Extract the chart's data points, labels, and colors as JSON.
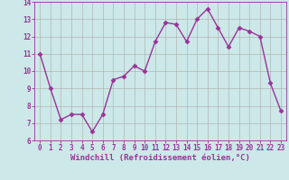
{
  "x": [
    0,
    1,
    2,
    3,
    4,
    5,
    6,
    7,
    8,
    9,
    10,
    11,
    12,
    13,
    14,
    15,
    16,
    17,
    18,
    19,
    20,
    21,
    22,
    23
  ],
  "y": [
    11.0,
    9.0,
    7.2,
    7.5,
    7.5,
    6.5,
    7.5,
    9.5,
    9.7,
    10.3,
    10.0,
    11.7,
    12.8,
    12.7,
    11.7,
    13.0,
    13.6,
    12.5,
    11.4,
    12.5,
    12.3,
    12.0,
    9.3,
    7.7
  ],
  "line_color": "#993399",
  "marker": "D",
  "markersize": 2.5,
  "linewidth": 1.0,
  "bg_color": "#cce8e8",
  "grid_color": "#aaaaaa",
  "xlabel": "Windchill (Refroidissement éolien,°C)",
  "ylabel": "",
  "ylim": [
    6,
    14
  ],
  "xlim": [
    -0.5,
    23.5
  ],
  "yticks": [
    6,
    7,
    8,
    9,
    10,
    11,
    12,
    13,
    14
  ],
  "xticks": [
    0,
    1,
    2,
    3,
    4,
    5,
    6,
    7,
    8,
    9,
    10,
    11,
    12,
    13,
    14,
    15,
    16,
    17,
    18,
    19,
    20,
    21,
    22,
    23
  ],
  "line_color2": "#993399",
  "tick_color": "#993399",
  "tick_fontsize": 5.5,
  "xlabel_fontsize": 6.5,
  "grid_linewidth": 0.4
}
